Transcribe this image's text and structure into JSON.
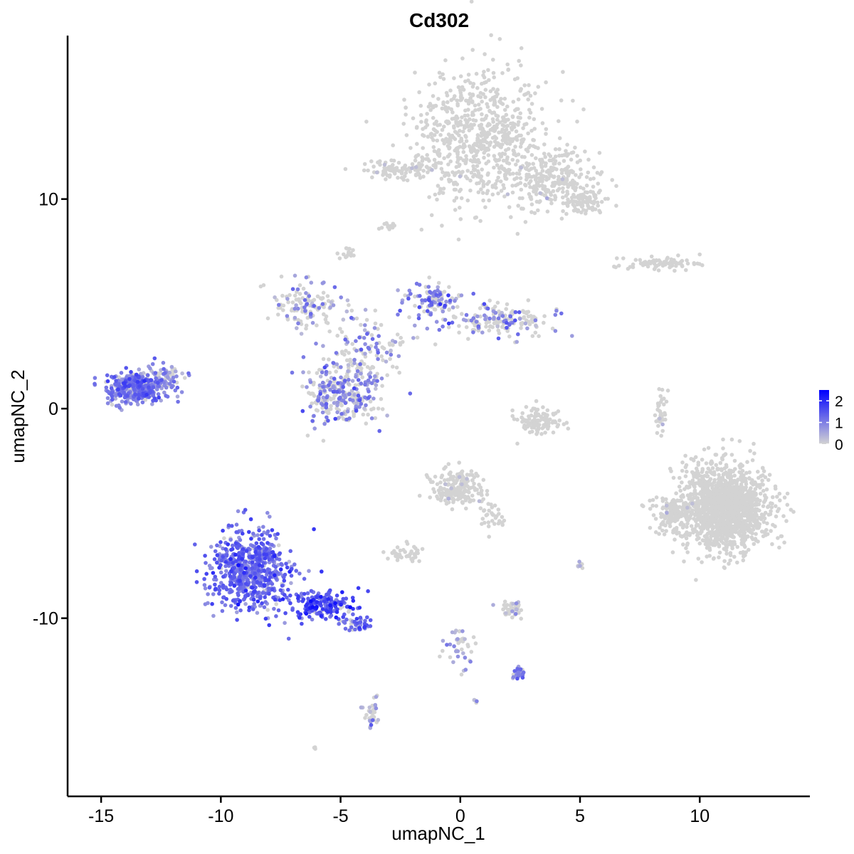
{
  "chart_data": {
    "type": "scatter",
    "title": "Cd302",
    "xlabel": "umapNC_1",
    "ylabel": "umapNC_2",
    "xlim": [
      -16.4,
      14.6
    ],
    "ylim": [
      -18.5,
      17.8
    ],
    "x_ticks": [
      -15,
      -10,
      -5,
      0,
      5,
      10
    ],
    "x_tick_labels": [
      "-15",
      "-10",
      "-5",
      "0",
      "5",
      "10"
    ],
    "y_ticks": [
      -10,
      0,
      10
    ],
    "y_tick_labels": [
      "-10",
      "0",
      "10"
    ],
    "grid": false,
    "legend": {
      "placement": "right",
      "type": "colorbar",
      "title": "",
      "range": [
        0,
        2.5
      ],
      "ticks": [
        0,
        1,
        2
      ],
      "tick_labels": [
        "0",
        "1",
        "2"
      ],
      "low_color": "#d3d3d3",
      "high_color": "#0000ff"
    },
    "point_color_rule": "expression value mapped from #d3d3d3 (0) to #0000ff (max)",
    "clusters": [
      {
        "name": "top-grey-main",
        "cx": 0.8,
        "cy": 13.0,
        "sx": 1.8,
        "sy": 2.2,
        "n": 700,
        "expr_mean": 0.0,
        "expr_rate": 0.0
      },
      {
        "name": "top-grey-tail",
        "cx": 3.8,
        "cy": 11.0,
        "sx": 1.3,
        "sy": 0.9,
        "n": 260,
        "expr_mean": 0.0,
        "expr_rate": 0.02
      },
      {
        "name": "top-grey-right",
        "cx": 5.2,
        "cy": 9.9,
        "sx": 0.6,
        "sy": 0.4,
        "n": 90,
        "expr_mean": 0.0,
        "expr_rate": 0.0
      },
      {
        "name": "top-grey-left-arm",
        "cx": -2.5,
        "cy": 11.4,
        "sx": 1.0,
        "sy": 0.35,
        "n": 90,
        "expr_mean": 0.0,
        "expr_rate": 0.05
      },
      {
        "name": "mid-small-1",
        "cx": -3.0,
        "cy": 8.7,
        "sx": 0.25,
        "sy": 0.15,
        "n": 12,
        "expr_mean": 0.0,
        "expr_rate": 0.0
      },
      {
        "name": "mid-small-2",
        "cx": -4.7,
        "cy": 7.4,
        "sx": 0.25,
        "sy": 0.2,
        "n": 15,
        "expr_mean": 0.0,
        "expr_rate": 0.0
      },
      {
        "name": "right-thin-band",
        "cx": 8.4,
        "cy": 6.9,
        "sx": 1.1,
        "sy": 0.2,
        "n": 80,
        "expr_mean": 0.0,
        "expr_rate": 0.03
      },
      {
        "name": "center-left-arm",
        "cx": -6.5,
        "cy": 5.0,
        "sx": 0.9,
        "sy": 0.7,
        "n": 120,
        "expr_mean": 0.8,
        "expr_rate": 0.35
      },
      {
        "name": "center-top-lobe",
        "cx": -1.2,
        "cy": 5.2,
        "sx": 0.8,
        "sy": 0.6,
        "n": 110,
        "expr_mean": 1.0,
        "expr_rate": 0.55
      },
      {
        "name": "center-right-lobe",
        "cx": 1.8,
        "cy": 4.2,
        "sx": 1.4,
        "sy": 0.5,
        "n": 170,
        "expr_mean": 0.9,
        "expr_rate": 0.4
      },
      {
        "name": "center-stem",
        "cx": -3.8,
        "cy": 3.0,
        "sx": 1.2,
        "sy": 1.2,
        "n": 130,
        "expr_mean": 0.8,
        "expr_rate": 0.4
      },
      {
        "name": "center-lower-blob",
        "cx": -5.0,
        "cy": 0.7,
        "sx": 1.1,
        "sy": 0.9,
        "n": 280,
        "expr_mean": 0.9,
        "expr_rate": 0.55
      },
      {
        "name": "left-dense-cluster",
        "cx": -13.6,
        "cy": 1.0,
        "sx": 0.8,
        "sy": 0.5,
        "n": 380,
        "expr_mean": 1.0,
        "expr_rate": 0.9
      },
      {
        "name": "left-cluster-tail",
        "cx": -12.3,
        "cy": 1.5,
        "sx": 0.5,
        "sy": 0.5,
        "n": 60,
        "expr_mean": 0.8,
        "expr_rate": 0.55
      },
      {
        "name": "small-mid-right",
        "cx": 3.3,
        "cy": -0.6,
        "sx": 0.6,
        "sy": 0.5,
        "n": 110,
        "expr_mean": 0.0,
        "expr_rate": 0.03
      },
      {
        "name": "small-vertical",
        "cx": 8.4,
        "cy": -0.1,
        "sx": 0.15,
        "sy": 0.7,
        "n": 35,
        "expr_mean": 0.0,
        "expr_rate": 0.04
      },
      {
        "name": "right-big-grey",
        "cx": 11.1,
        "cy": -4.7,
        "sx": 1.2,
        "sy": 1.3,
        "n": 1500,
        "expr_mean": 0.0,
        "expr_rate": 0.0
      },
      {
        "name": "right-big-grey-tail",
        "cx": 8.9,
        "cy": -5.1,
        "sx": 0.6,
        "sy": 0.6,
        "n": 120,
        "expr_mean": 0.0,
        "expr_rate": 0.02
      },
      {
        "name": "bottom-grey-upper",
        "cx": -0.1,
        "cy": -3.8,
        "sx": 0.8,
        "sy": 0.6,
        "n": 200,
        "expr_mean": 0.0,
        "expr_rate": 0.03
      },
      {
        "name": "bottom-grey-leftarm",
        "cx": -2.3,
        "cy": -6.9,
        "sx": 0.5,
        "sy": 0.25,
        "n": 40,
        "expr_mean": 0.0,
        "expr_rate": 0.0
      },
      {
        "name": "bottom-grey-tail",
        "cx": 1.3,
        "cy": -5.2,
        "sx": 0.4,
        "sy": 0.5,
        "n": 30,
        "expr_mean": 0.0,
        "expr_rate": 0.0
      },
      {
        "name": "lower-left-big-purple",
        "cx": -8.8,
        "cy": -7.8,
        "sx": 1.1,
        "sy": 1.3,
        "n": 650,
        "expr_mean": 1.2,
        "expr_rate": 0.95
      },
      {
        "name": "lower-left-purple-arm",
        "cx": -5.8,
        "cy": -9.4,
        "sx": 0.9,
        "sy": 0.45,
        "n": 170,
        "expr_mean": 1.45,
        "expr_rate": 0.95
      },
      {
        "name": "lower-left-purple-tip",
        "cx": -4.3,
        "cy": -10.2,
        "sx": 0.4,
        "sy": 0.25,
        "n": 40,
        "expr_mean": 1.1,
        "expr_rate": 0.9
      },
      {
        "name": "small-lower-mid",
        "cx": 2.1,
        "cy": -9.6,
        "sx": 0.3,
        "sy": 0.25,
        "n": 45,
        "expr_mean": 0.2,
        "expr_rate": 0.3
      },
      {
        "name": "small-lower-trail",
        "cx": 0.0,
        "cy": -11.5,
        "sx": 0.5,
        "sy": 0.7,
        "n": 40,
        "expr_mean": 0.5,
        "expr_rate": 0.35
      },
      {
        "name": "small-lower-right",
        "cx": 2.4,
        "cy": -12.6,
        "sx": 0.2,
        "sy": 0.2,
        "n": 25,
        "expr_mean": 0.9,
        "expr_rate": 0.8
      },
      {
        "name": "bottom-vertical-bit",
        "cx": -3.7,
        "cy": -14.6,
        "sx": 0.2,
        "sy": 0.5,
        "n": 35,
        "expr_mean": 0.6,
        "expr_rate": 0.5
      },
      {
        "name": "tiny-isolated-1",
        "cx": 5.0,
        "cy": -7.5,
        "sx": 0.1,
        "sy": 0.15,
        "n": 8,
        "expr_mean": 0.3,
        "expr_rate": 0.3
      },
      {
        "name": "tiny-isolated-2",
        "cx": 0.6,
        "cy": -13.9,
        "sx": 0.06,
        "sy": 0.06,
        "n": 4,
        "expr_mean": 0.5,
        "expr_rate": 0.5
      },
      {
        "name": "tiny-isolated-3",
        "cx": -6.1,
        "cy": -16.2,
        "sx": 0.05,
        "sy": 0.05,
        "n": 3,
        "expr_mean": 0.0,
        "expr_rate": 0.0
      }
    ]
  }
}
